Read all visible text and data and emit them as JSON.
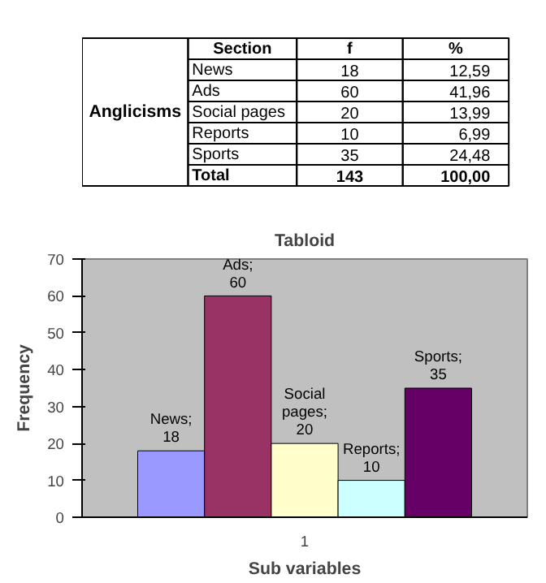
{
  "chart_data": [
    {
      "type": "other",
      "annotations": [
        "Anglicisms",
        "Section",
        "f",
        "%",
        "News",
        "18",
        "12,59",
        "Ads",
        "60",
        "41,96",
        "Social pages",
        "20",
        "13,99",
        "Reports",
        "10",
        "6,99",
        "Sports",
        "35",
        "24,48",
        "Total",
        "143",
        "100,00"
      ]
    },
    {
      "type": "bar",
      "title": "Tabloid",
      "xlabel": "Sub variables",
      "ylabel": "Frequency",
      "categories": [
        "1"
      ],
      "series": [
        {
          "color": "#9999ff",
          "values": [
            18
          ],
          "value_labels": [
            "News; 18"
          ]
        },
        {
          "color": "#993366",
          "values": [
            60
          ],
          "value_labels": [
            "Ads; 60"
          ]
        },
        {
          "color": "#ffffcc",
          "values": [
            20
          ],
          "value_labels": [
            "Social pages; 20"
          ]
        },
        {
          "color": "#ccffff",
          "values": [
            10
          ],
          "value_labels": [
            "Reports; 10"
          ]
        },
        {
          "color": "#660066",
          "values": [
            35
          ],
          "value_labels": [
            "Sports; 35"
          ]
        }
      ],
      "ylim": [
        0,
        70
      ],
      "yticks": [
        0,
        10,
        20,
        30,
        40,
        50,
        60,
        70
      ]
    }
  ]
}
